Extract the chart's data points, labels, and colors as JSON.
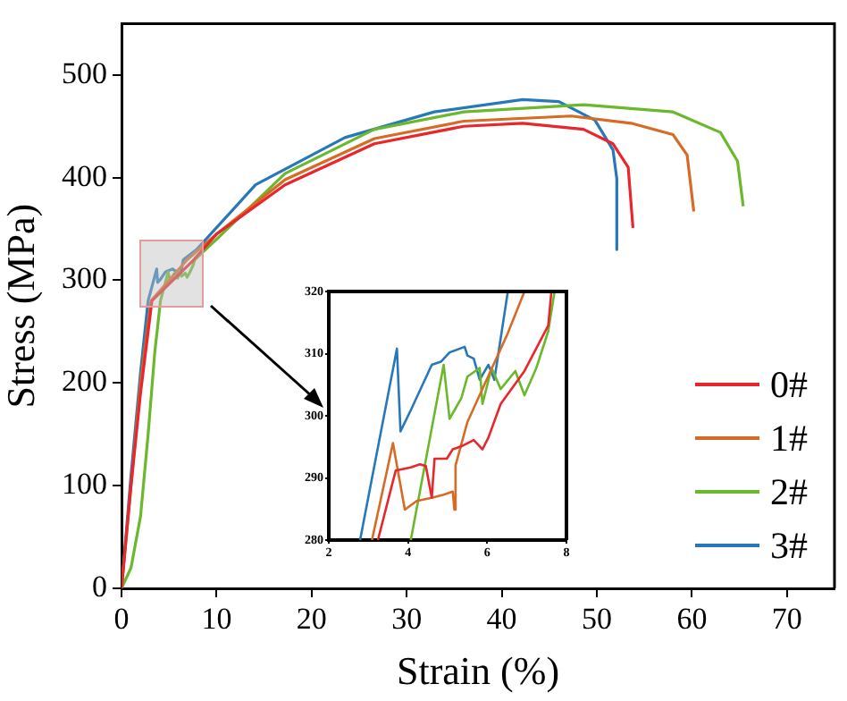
{
  "chart_data": [
    {
      "type": "line",
      "xlabel": "Strain (%)",
      "ylabel": "Stress (MPa)",
      "xlim": [
        0,
        75
      ],
      "ylim": [
        0,
        550
      ],
      "xticks": [
        0,
        10,
        20,
        30,
        40,
        50,
        60,
        70
      ],
      "yticks": [
        0,
        100,
        200,
        300,
        400,
        500
      ],
      "legend": "bottom right",
      "marker": "none",
      "series": [
        {
          "name": "0#",
          "color": "#e8262b",
          "x": [
            0,
            1,
            2,
            3.2,
            7.6,
            10,
            17.2,
            26.6,
            36,
            42.2,
            48.6,
            51.7,
            53.3,
            53.8
          ],
          "values": [
            0,
            100,
            190,
            280,
            320,
            345,
            393,
            433,
            450,
            453,
            447,
            433,
            410,
            351
          ]
        },
        {
          "name": "1#",
          "color": "#d66b25",
          "x": [
            0,
            1,
            2,
            3.1,
            6.9,
            10,
            17.2,
            26.6,
            36,
            47.3,
            53.6,
            58,
            59.5,
            60.2
          ],
          "values": [
            0,
            100,
            200,
            280,
            320,
            345,
            398,
            438,
            455,
            460,
            453,
            442,
            422,
            367
          ]
        },
        {
          "name": "2#",
          "color": "#6ab82c",
          "x": [
            0,
            1,
            2,
            2.8,
            3.5,
            4.1,
            4.9,
            5.1,
            5.4,
            5.5,
            5.8,
            5.9,
            6.1,
            6.3,
            6.7,
            6.9,
            7.2,
            7.5,
            7.7,
            10,
            17.2,
            26.6,
            36,
            48.6,
            58,
            63,
            64.8,
            65.4
          ],
          "values": [
            0,
            20,
            70,
            150,
            230,
            280,
            308,
            300,
            303,
            306,
            308,
            302,
            308,
            304,
            307,
            303,
            308,
            314,
            320,
            340,
            404,
            447,
            464,
            471,
            464,
            444,
            416,
            372
          ]
        },
        {
          "name": "3#",
          "color": "#2878b8",
          "x": [
            0,
            1,
            2,
            2.8,
            3.7,
            3.8,
            4.1,
            4.6,
            4.8,
            5.1,
            5.4,
            5.5,
            5.7,
            5.8,
            6,
            6.2,
            6.5,
            7.9,
            14.1,
            23.5,
            32.9,
            42.2,
            46,
            49.8,
            51.7,
            52.1,
            52.1
          ],
          "values": [
            0,
            110,
            210,
            280,
            311,
            298,
            301,
            308,
            309,
            310,
            311,
            310,
            309,
            306,
            308,
            306,
            320,
            330,
            393,
            439,
            464,
            476,
            474,
            456,
            427,
            399,
            330
          ]
        }
      ]
    },
    {
      "type": "line",
      "xlim": [
        2,
        8
      ],
      "ylim": [
        280,
        320
      ],
      "xticks": [
        2,
        4,
        6,
        8
      ],
      "yticks": [
        280,
        290,
        300,
        310,
        320
      ],
      "marker": "none",
      "series": [
        {
          "color": "#e8262b",
          "x": [
            3.24,
            3.69,
            4.07,
            4.3,
            4.45,
            4.6,
            4.67,
            4.98,
            5.13,
            5.35,
            5.66,
            5.88,
            6.03,
            6.34,
            6.94,
            7.54,
            7.62
          ],
          "values": [
            280,
            291.2,
            291.7,
            292.2,
            291.9,
            286.8,
            293.1,
            293.1,
            294.6,
            295.1,
            296.1,
            294.6,
            296.5,
            301.9,
            307.2,
            314.5,
            320
          ]
        },
        {
          "color": "#d66b25",
          "x": [
            3.09,
            3.62,
            3.92,
            4.22,
            4.6,
            4.9,
            5.13,
            5.17,
            5.2,
            5.5,
            6,
            6.5,
            6.94
          ],
          "values": [
            280,
            295.6,
            284.9,
            286.3,
            286.8,
            287.3,
            287.8,
            284.9,
            292,
            299,
            306,
            313,
            320
          ]
        },
        {
          "color": "#6ab82c",
          "x": [
            4.07,
            4.9,
            5.05,
            5.35,
            5.5,
            5.81,
            5.88,
            6.11,
            6.34,
            6.71,
            6.94,
            7.24,
            7.54,
            7.7
          ],
          "values": [
            280,
            308.2,
            299.5,
            302.9,
            306.3,
            307.7,
            301.9,
            307.7,
            304.3,
            307.2,
            303.3,
            307.7,
            313.6,
            320
          ]
        },
        {
          "color": "#2878b8",
          "x": [
            2.79,
            3.72,
            3.81,
            4.07,
            4.6,
            4.83,
            5.05,
            5.43,
            5.5,
            5.66,
            5.81,
            6.03,
            6.18,
            6.52
          ],
          "values": [
            280,
            310.8,
            297.5,
            300.9,
            308.2,
            308.7,
            310.2,
            311.1,
            309.7,
            309.2,
            305.8,
            308.2,
            305.8,
            320
          ]
        }
      ]
    }
  ]
}
